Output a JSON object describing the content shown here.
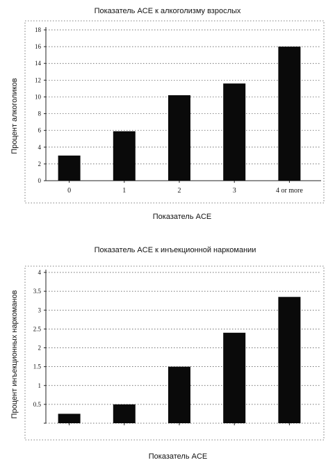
{
  "chart_data": [
    {
      "type": "bar",
      "title": "Показатель ACE к алкоголизму взрослых",
      "xlabel": "Показатель ACE",
      "ylabel": "Процент алкоголиков",
      "categories": [
        "0",
        "1",
        "2",
        "3",
        "4 or more"
      ],
      "values": [
        3,
        5.9,
        10.2,
        11.6,
        16
      ],
      "ylim": [
        0,
        18
      ],
      "yticks": [
        "0",
        "2",
        "4",
        "6",
        "8",
        "10",
        "12",
        "14",
        "16",
        "18"
      ],
      "grid": true,
      "legend": "none"
    },
    {
      "type": "bar",
      "title": "Показатель ACE к инъекционной наркомании",
      "xlabel": "Показатель ACE",
      "ylabel": "Процент инъекционных наркоманов",
      "categories": [
        "",
        "",
        "",
        "",
        ""
      ],
      "values": [
        0.25,
        0.5,
        1.5,
        2.4,
        3.35
      ],
      "ylim": [
        0,
        4
      ],
      "yticks": [
        "",
        "0.5",
        "1",
        "1.5",
        "2",
        "2.5",
        "3",
        "3.5",
        "4"
      ],
      "grid": true,
      "legend": "none"
    }
  ]
}
